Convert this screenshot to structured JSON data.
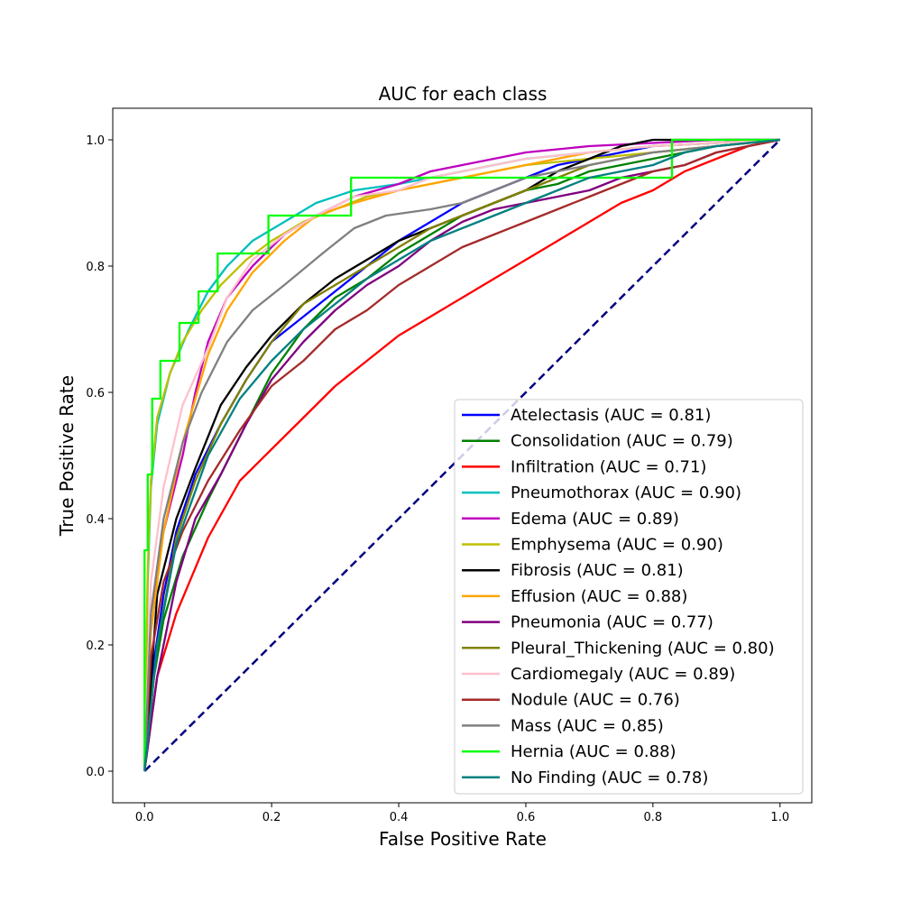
{
  "chart_data": {
    "type": "line",
    "title": "AUC for each class",
    "xlabel": "False Positive Rate",
    "ylabel": "True Positive Rate",
    "xlim": [
      -0.05,
      1.05
    ],
    "ylim": [
      -0.05,
      1.05
    ],
    "xticks": [
      "0.0",
      "0.2",
      "0.4",
      "0.6",
      "0.8",
      "1.0"
    ],
    "yticks": [
      "0.0",
      "0.2",
      "0.4",
      "0.6",
      "0.8",
      "1.0"
    ],
    "legend_position": "lower-right",
    "baseline": {
      "x": [
        0,
        1
      ],
      "y": [
        0,
        1
      ],
      "color": "#000080",
      "style": "dashed"
    },
    "series": [
      {
        "name": "Atelectasis (AUC = 0.81)",
        "color": "#0000ff",
        "x": [
          0,
          0.01,
          0.03,
          0.05,
          0.08,
          0.12,
          0.16,
          0.2,
          0.25,
          0.3,
          0.35,
          0.4,
          0.45,
          0.5,
          0.55,
          0.6,
          0.65,
          0.7,
          0.75,
          0.8,
          0.9,
          1.0
        ],
        "y": [
          0,
          0.14,
          0.28,
          0.38,
          0.47,
          0.55,
          0.62,
          0.68,
          0.72,
          0.76,
          0.8,
          0.84,
          0.87,
          0.9,
          0.92,
          0.94,
          0.96,
          0.97,
          0.98,
          0.99,
          0.995,
          1.0
        ]
      },
      {
        "name": "Consolidation (AUC = 0.79)",
        "color": "#008000",
        "x": [
          0,
          0.01,
          0.03,
          0.06,
          0.1,
          0.15,
          0.2,
          0.25,
          0.3,
          0.35,
          0.4,
          0.45,
          0.5,
          0.55,
          0.6,
          0.65,
          0.7,
          0.8,
          0.9,
          1.0
        ],
        "y": [
          0,
          0.12,
          0.24,
          0.34,
          0.43,
          0.53,
          0.63,
          0.7,
          0.75,
          0.78,
          0.82,
          0.85,
          0.88,
          0.9,
          0.92,
          0.93,
          0.95,
          0.97,
          0.99,
          1.0
        ]
      },
      {
        "name": "Infiltration (AUC = 0.71)",
        "color": "#ff0000",
        "x": [
          0,
          0.02,
          0.05,
          0.1,
          0.15,
          0.2,
          0.25,
          0.3,
          0.35,
          0.4,
          0.45,
          0.5,
          0.55,
          0.6,
          0.65,
          0.7,
          0.75,
          0.8,
          0.85,
          0.9,
          0.95,
          1.0
        ],
        "y": [
          0,
          0.15,
          0.25,
          0.37,
          0.46,
          0.51,
          0.56,
          0.61,
          0.65,
          0.69,
          0.72,
          0.75,
          0.78,
          0.81,
          0.84,
          0.87,
          0.9,
          0.92,
          0.95,
          0.97,
          0.99,
          1.0
        ]
      },
      {
        "name": "Pneumothorax (AUC = 0.90)",
        "color": "#00bfbf",
        "x": [
          0,
          0.005,
          0.01,
          0.02,
          0.04,
          0.07,
          0.1,
          0.13,
          0.17,
          0.22,
          0.27,
          0.33,
          0.4,
          0.45,
          0.5,
          0.55,
          0.6,
          0.7,
          0.8,
          0.9,
          1.0
        ],
        "y": [
          0,
          0.3,
          0.45,
          0.55,
          0.63,
          0.7,
          0.76,
          0.8,
          0.84,
          0.87,
          0.9,
          0.92,
          0.93,
          0.94,
          0.95,
          0.96,
          0.97,
          0.98,
          0.99,
          0.995,
          1.0
        ]
      },
      {
        "name": "Edema (AUC = 0.89)",
        "color": "#bf00bf",
        "x": [
          0,
          0.01,
          0.03,
          0.06,
          0.08,
          0.1,
          0.13,
          0.17,
          0.22,
          0.27,
          0.33,
          0.4,
          0.45,
          0.5,
          0.55,
          0.6,
          0.65,
          0.7,
          0.8,
          0.9,
          1.0
        ],
        "y": [
          0,
          0.25,
          0.38,
          0.5,
          0.6,
          0.68,
          0.75,
          0.8,
          0.85,
          0.88,
          0.91,
          0.93,
          0.95,
          0.96,
          0.97,
          0.98,
          0.985,
          0.99,
          0.995,
          1.0,
          1.0
        ]
      },
      {
        "name": "Emphysema (AUC = 0.90)",
        "color": "#bfbf00",
        "x": [
          0,
          0.005,
          0.01,
          0.02,
          0.04,
          0.06,
          0.09,
          0.12,
          0.16,
          0.2,
          0.25,
          0.3,
          0.35,
          0.4,
          0.45,
          0.5,
          0.6,
          0.7,
          0.8,
          0.9,
          1.0
        ],
        "y": [
          0,
          0.32,
          0.46,
          0.56,
          0.63,
          0.68,
          0.73,
          0.77,
          0.81,
          0.84,
          0.87,
          0.89,
          0.91,
          0.92,
          0.93,
          0.94,
          0.96,
          0.97,
          0.98,
          0.99,
          1.0
        ]
      },
      {
        "name": "Fibrosis (AUC = 0.81)",
        "color": "#000000",
        "x": [
          0,
          0.02,
          0.05,
          0.08,
          0.12,
          0.16,
          0.2,
          0.25,
          0.3,
          0.35,
          0.4,
          0.45,
          0.5,
          0.55,
          0.6,
          0.65,
          0.7,
          0.75,
          0.8,
          0.9,
          1.0
        ],
        "y": [
          0,
          0.28,
          0.4,
          0.48,
          0.58,
          0.64,
          0.69,
          0.74,
          0.78,
          0.81,
          0.84,
          0.86,
          0.88,
          0.9,
          0.92,
          0.95,
          0.97,
          0.99,
          1.0,
          1.0,
          1.0
        ]
      },
      {
        "name": "Effusion (AUC = 0.88)",
        "color": "#ffa500",
        "x": [
          0,
          0.01,
          0.03,
          0.06,
          0.1,
          0.13,
          0.17,
          0.22,
          0.27,
          0.33,
          0.4,
          0.45,
          0.5,
          0.55,
          0.6,
          0.7,
          0.8,
          0.9,
          1.0
        ],
        "y": [
          0,
          0.22,
          0.38,
          0.52,
          0.66,
          0.73,
          0.79,
          0.84,
          0.88,
          0.9,
          0.92,
          0.93,
          0.94,
          0.95,
          0.96,
          0.98,
          0.99,
          0.995,
          1.0
        ]
      },
      {
        "name": "Pneumonia (AUC = 0.77)",
        "color": "#800080",
        "x": [
          0,
          0.02,
          0.05,
          0.08,
          0.12,
          0.16,
          0.2,
          0.25,
          0.3,
          0.35,
          0.4,
          0.45,
          0.5,
          0.55,
          0.6,
          0.65,
          0.7,
          0.75,
          0.8,
          0.85,
          0.9,
          1.0
        ],
        "y": [
          0,
          0.15,
          0.3,
          0.4,
          0.47,
          0.55,
          0.62,
          0.68,
          0.73,
          0.77,
          0.8,
          0.84,
          0.87,
          0.89,
          0.9,
          0.91,
          0.92,
          0.94,
          0.95,
          0.96,
          0.98,
          1.0
        ]
      },
      {
        "name": "Pleural_Thickening (AUC = 0.80)",
        "color": "#808000",
        "x": [
          0,
          0.02,
          0.05,
          0.08,
          0.12,
          0.16,
          0.2,
          0.25,
          0.3,
          0.35,
          0.4,
          0.45,
          0.5,
          0.55,
          0.6,
          0.65,
          0.7,
          0.8,
          0.9,
          1.0
        ],
        "y": [
          0,
          0.2,
          0.37,
          0.46,
          0.55,
          0.62,
          0.68,
          0.74,
          0.77,
          0.8,
          0.83,
          0.86,
          0.88,
          0.9,
          0.92,
          0.94,
          0.96,
          0.98,
          0.99,
          1.0
        ]
      },
      {
        "name": "Cardiomegaly (AUC = 0.89)",
        "color": "#ffc0cb",
        "x": [
          0,
          0.01,
          0.03,
          0.06,
          0.1,
          0.13,
          0.17,
          0.22,
          0.27,
          0.33,
          0.4,
          0.45,
          0.5,
          0.6,
          0.7,
          0.8,
          0.9,
          1.0
        ],
        "y": [
          0,
          0.3,
          0.45,
          0.58,
          0.67,
          0.75,
          0.81,
          0.85,
          0.88,
          0.91,
          0.92,
          0.94,
          0.95,
          0.97,
          0.98,
          0.99,
          0.995,
          1.0
        ]
      },
      {
        "name": "Nodule (AUC = 0.76)",
        "color": "#a52a2a",
        "x": [
          0,
          0.01,
          0.03,
          0.06,
          0.1,
          0.15,
          0.2,
          0.25,
          0.3,
          0.35,
          0.4,
          0.45,
          0.5,
          0.55,
          0.6,
          0.65,
          0.7,
          0.75,
          0.8,
          0.85,
          0.9,
          1.0
        ],
        "y": [
          0,
          0.18,
          0.3,
          0.38,
          0.46,
          0.54,
          0.61,
          0.65,
          0.7,
          0.73,
          0.77,
          0.8,
          0.83,
          0.85,
          0.87,
          0.89,
          0.91,
          0.93,
          0.95,
          0.96,
          0.98,
          1.0
        ]
      },
      {
        "name": "Mass (AUC = 0.85)",
        "color": "#808080",
        "x": [
          0,
          0.01,
          0.03,
          0.06,
          0.09,
          0.13,
          0.17,
          0.22,
          0.28,
          0.33,
          0.38,
          0.45,
          0.5,
          0.55,
          0.6,
          0.7,
          0.8,
          0.9,
          1.0
        ],
        "y": [
          0,
          0.25,
          0.4,
          0.52,
          0.6,
          0.68,
          0.73,
          0.77,
          0.82,
          0.86,
          0.88,
          0.89,
          0.9,
          0.92,
          0.94,
          0.96,
          0.98,
          0.99,
          1.0
        ]
      },
      {
        "name": "Hernia (AUC = 0.88)",
        "color": "#00ff00",
        "x": [
          0,
          0,
          0.005,
          0.005,
          0.012,
          0.012,
          0.025,
          0.025,
          0.055,
          0.055,
          0.085,
          0.085,
          0.115,
          0.115,
          0.195,
          0.195,
          0.325,
          0.325,
          0.385,
          0.385,
          0.83,
          0.83,
          1.0
        ],
        "y": [
          0,
          0.35,
          0.35,
          0.47,
          0.47,
          0.59,
          0.59,
          0.65,
          0.65,
          0.71,
          0.71,
          0.76,
          0.76,
          0.82,
          0.82,
          0.88,
          0.88,
          0.94,
          0.94,
          0.94,
          0.94,
          1.0,
          1.0
        ]
      },
      {
        "name": "No Finding (AUC = 0.78)",
        "color": "#008080",
        "x": [
          0,
          0.02,
          0.05,
          0.1,
          0.15,
          0.2,
          0.25,
          0.3,
          0.35,
          0.4,
          0.45,
          0.5,
          0.55,
          0.6,
          0.65,
          0.7,
          0.75,
          0.8,
          0.85,
          0.9,
          1.0
        ],
        "y": [
          0,
          0.2,
          0.36,
          0.5,
          0.59,
          0.65,
          0.7,
          0.74,
          0.78,
          0.81,
          0.84,
          0.86,
          0.88,
          0.9,
          0.92,
          0.94,
          0.95,
          0.96,
          0.98,
          0.99,
          1.0
        ]
      }
    ]
  }
}
